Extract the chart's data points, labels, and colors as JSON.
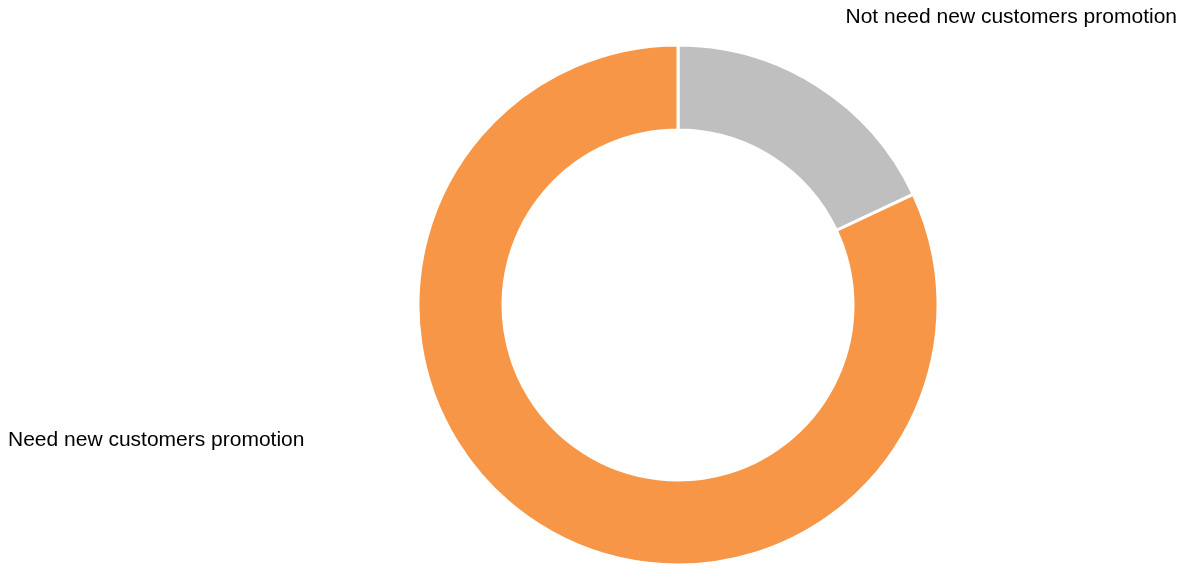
{
  "chart_data": {
    "type": "donut",
    "categories": [
      "Not need new customers promotion",
      "Need new customers promotion"
    ],
    "values": [
      18,
      82
    ],
    "colors": [
      "#bfbfbf",
      "#f79646"
    ]
  }
}
